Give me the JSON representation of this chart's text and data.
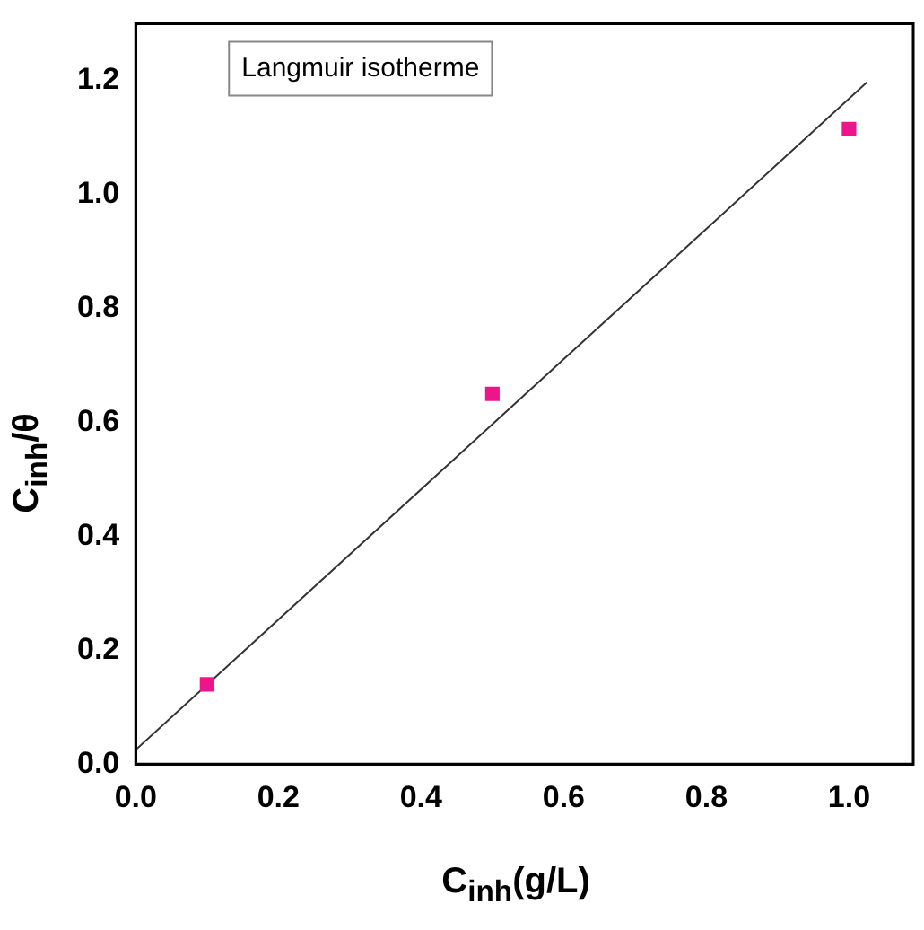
{
  "chart_data": {
    "type": "scatter",
    "xlabel": "C$_{inh}$(g/L)",
    "ylabel": "C$_{inh}$/θ",
    "annotations": [
      "Langmuir isotherme"
    ],
    "xlim": [
      0,
      1.09
    ],
    "ylim": [
      0,
      1.3
    ],
    "xticks": [
      {
        "value": 0,
        "label": "0.0"
      },
      0.2,
      0.4,
      0.6,
      0.8,
      {
        "value": 1,
        "label": "1.0"
      }
    ],
    "yticks": [
      {
        "value": 0,
        "label": "0.0"
      },
      0.2,
      0.4,
      0.6,
      0.8,
      {
        "value": 1,
        "label": "1.0"
      },
      {
        "value": 1.2,
        "label": "1.2"
      }
    ],
    "grid": false,
    "series": [
      {
        "marker": "square",
        "color": "#f0148c",
        "x": [
          0.1,
          0.5,
          1.0
        ],
        "values": [
          0.14,
          0.65,
          1.115
        ]
      },
      {
        "type": "line",
        "marker": "none",
        "line_style": "solid",
        "color": "#333333",
        "x": [
          0,
          1.025
        ],
        "values": [
          0.025,
          1.197
        ]
      }
    ]
  }
}
